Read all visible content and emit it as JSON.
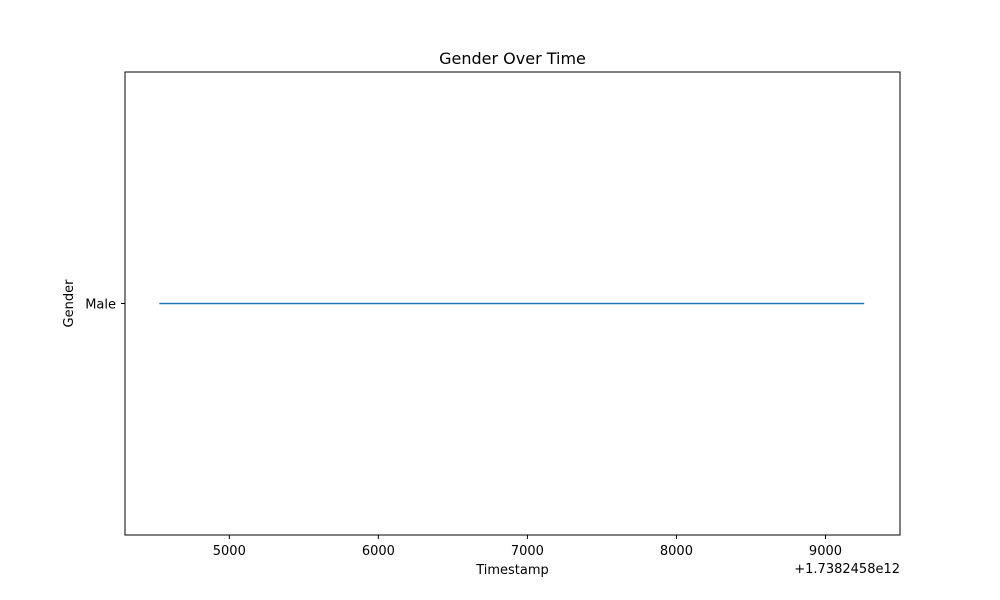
{
  "chart_data": {
    "type": "line",
    "title": "Gender Over Time",
    "xlabel": "Timestamp",
    "ylabel": "Gender",
    "x_offset_label": "+1.7382458e12",
    "xlim": [
      4300,
      9500
    ],
    "x_ticks": [
      {
        "value": 5000,
        "label": "5000"
      },
      {
        "value": 6000,
        "label": "6000"
      },
      {
        "value": 7000,
        "label": "7000"
      },
      {
        "value": 8000,
        "label": "8000"
      },
      {
        "value": 9000,
        "label": "9000"
      }
    ],
    "y_categories": [
      "Male"
    ],
    "ylim": [
      -1,
      1
    ],
    "series": [
      {
        "x": [
          4530,
          9260
        ],
        "y": [
          "Male",
          "Male"
        ],
        "color": "#1f77b4"
      }
    ],
    "grid": false,
    "legend": "none"
  }
}
